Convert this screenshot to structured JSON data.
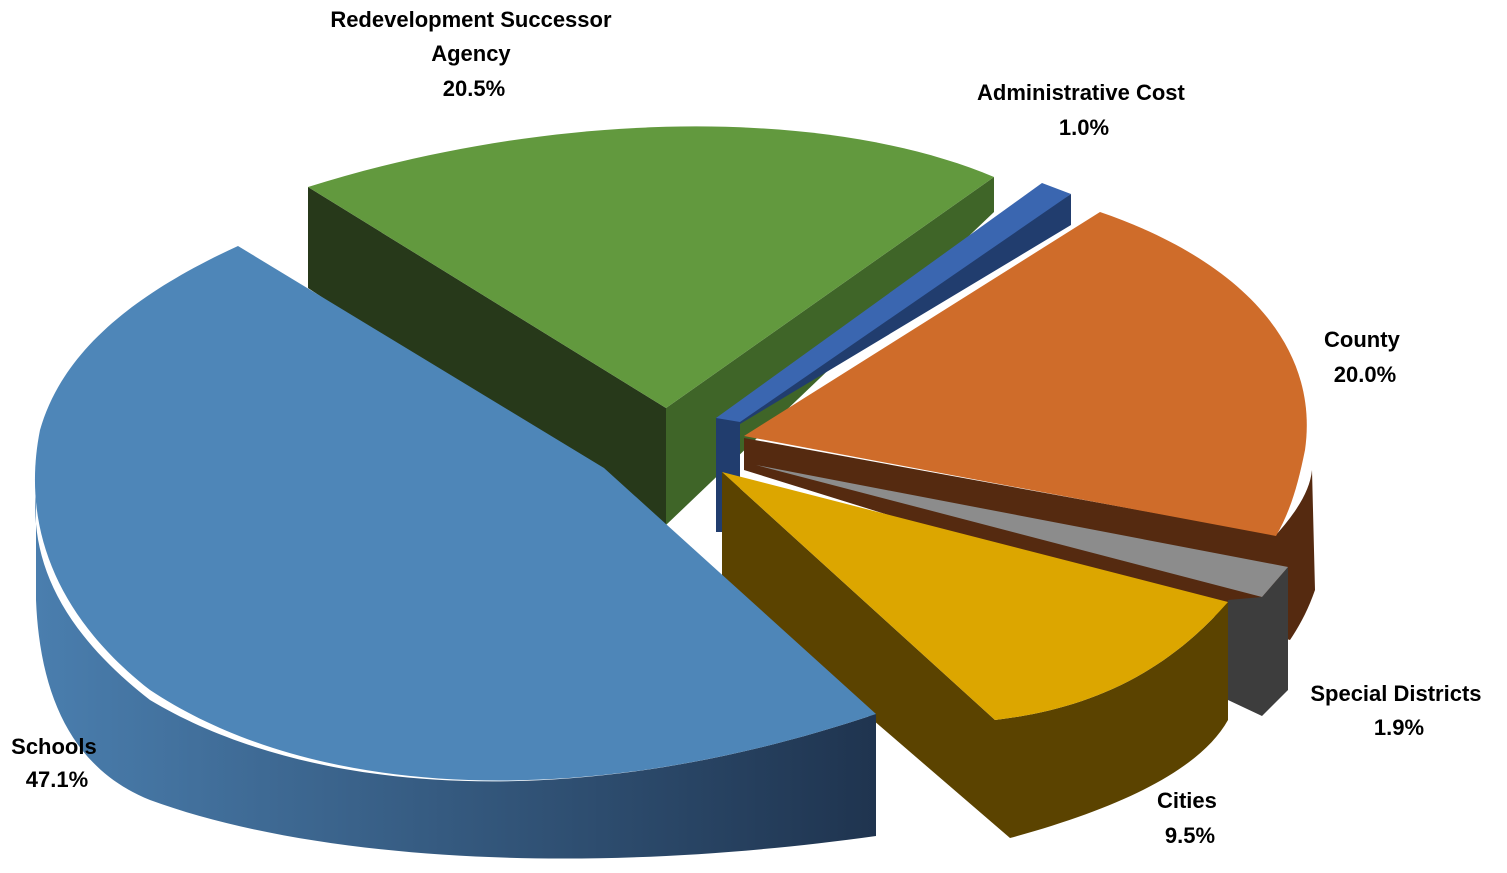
{
  "chart_data": {
    "type": "pie",
    "style": "3d-exploded",
    "title": "",
    "slices": [
      {
        "label_lines": [
          "Redevelopment Successor",
          "Agency"
        ],
        "value": 20.5,
        "value_text": "20.5%",
        "color": "#62993e"
      },
      {
        "label_lines": [
          "Administrative Cost"
        ],
        "value": 1.0,
        "value_text": "1.0%",
        "color": "#3a66b0"
      },
      {
        "label_lines": [
          "County"
        ],
        "value": 20.0,
        "value_text": "20.0%",
        "color": "#cf6c2a"
      },
      {
        "label_lines": [
          "Special Districts"
        ],
        "value": 1.9,
        "value_text": "1.9%",
        "color": "#8c8c8c"
      },
      {
        "label_lines": [
          "Cities"
        ],
        "value": 9.5,
        "value_text": "9.5%",
        "color": "#dca600"
      },
      {
        "label_lines": [
          "Schools"
        ],
        "value": 47.1,
        "value_text": "47.1%",
        "color": "#4e86b8"
      }
    ]
  }
}
